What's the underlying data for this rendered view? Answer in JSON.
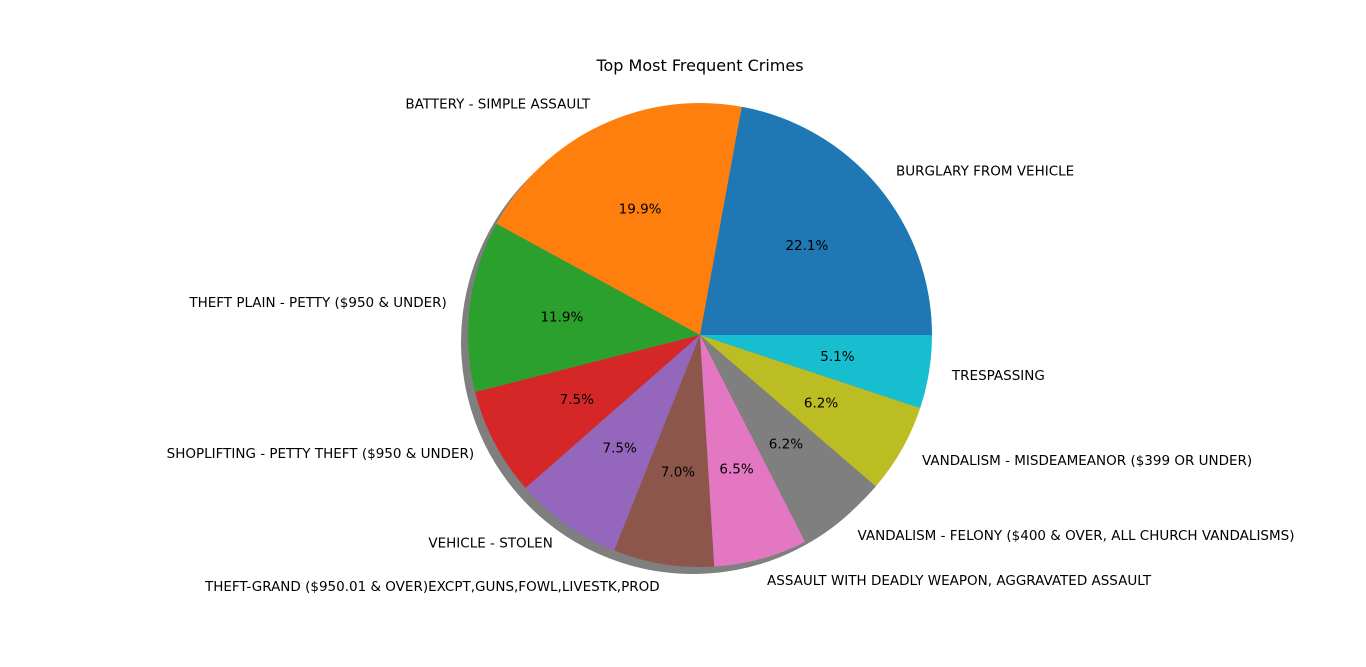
{
  "chart_data": {
    "type": "pie",
    "title": "Top Most Frequent Crimes",
    "shadow": true,
    "start_angle_deg": 0,
    "direction": "counterclockwise",
    "slices": [
      {
        "label": "BURGLARY FROM VEHICLE",
        "pct_text": "22.1%",
        "value": 22.1,
        "color": "#1f77b4"
      },
      {
        "label": "BATTERY - SIMPLE ASSAULT",
        "pct_text": "19.9%",
        "value": 19.9,
        "color": "#ff7f0e"
      },
      {
        "label": "THEFT PLAIN - PETTY ($950 & UNDER)",
        "pct_text": "11.9%",
        "value": 11.9,
        "color": "#2ca02c"
      },
      {
        "label": "SHOPLIFTING - PETTY THEFT ($950 & UNDER)",
        "pct_text": "7.5%",
        "value": 7.5,
        "color": "#d62728"
      },
      {
        "label": "VEHICLE - STOLEN",
        "pct_text": "7.5%",
        "value": 7.5,
        "color": "#9467bd"
      },
      {
        "label": "THEFT-GRAND ($950.01 & OVER)EXCPT,GUNS,FOWL,LIVESTK,PROD",
        "pct_text": "7.0%",
        "value": 7.0,
        "color": "#8c564b"
      },
      {
        "label": "ASSAULT WITH DEADLY WEAPON, AGGRAVATED ASSAULT",
        "pct_text": "6.5%",
        "value": 6.5,
        "color": "#e377c2"
      },
      {
        "label": "VANDALISM - FELONY ($400 & OVER, ALL CHURCH VANDALISMS)",
        "pct_text": "6.2%",
        "value": 6.2,
        "color": "#7f7f7f"
      },
      {
        "label": "VANDALISM - MISDEAMEANOR ($399 OR UNDER)",
        "pct_text": "6.2%",
        "value": 6.2,
        "color": "#bcbd22"
      },
      {
        "label": "TRESPASSING",
        "pct_text": "5.1%",
        "value": 5.1,
        "color": "#17becf"
      }
    ]
  }
}
